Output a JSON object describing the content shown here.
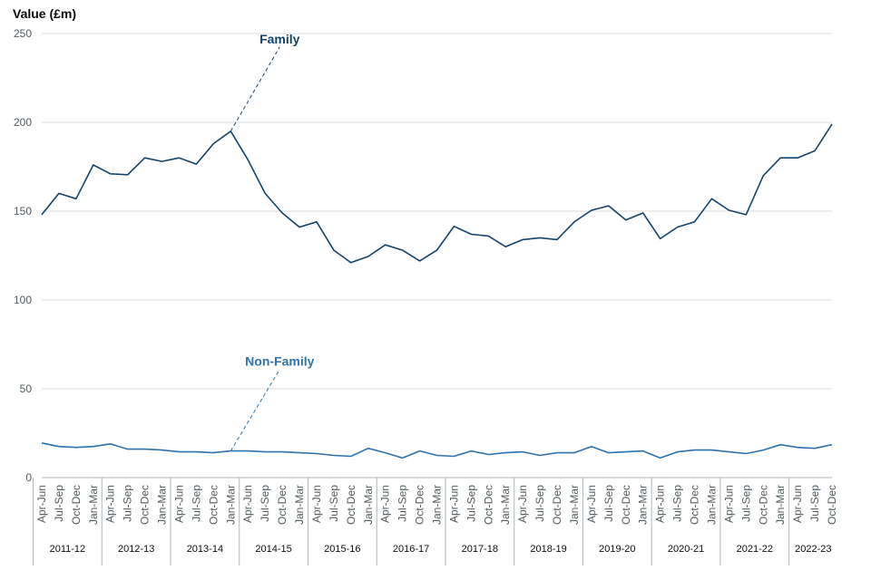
{
  "chart_data": {
    "type": "line",
    "ylabel": "Value (£m)",
    "ylim": [
      0,
      250
    ],
    "yticks": [
      0,
      50,
      100,
      150,
      200,
      250
    ],
    "grid": true,
    "legend": "inline labels",
    "categories": [
      "Apr-Jun",
      "Jul-Sep",
      "Oct-Dec",
      "Jan-Mar",
      "Apr-Jun",
      "Jul-Sep",
      "Oct-Dec",
      "Jan-Mar",
      "Apr-Jun",
      "Jul-Sep",
      "Oct-Dec",
      "Jan-Mar",
      "Apr-Jun",
      "Jul-Sep",
      "Oct-Dec",
      "Jan-Mar",
      "Apr-Jun",
      "Jul-Sep",
      "Oct-Dec",
      "Jan-Mar",
      "Apr-Jun",
      "Jul-Sep",
      "Oct-Dec",
      "Jan-Mar",
      "Apr-Jun",
      "Jul-Sep",
      "Oct-Dec",
      "Jan-Mar",
      "Apr-Jun",
      "Jul-Sep",
      "Oct-Dec",
      "Jan-Mar",
      "Apr-Jun",
      "Jul-Sep",
      "Oct-Dec",
      "Jan-Mar",
      "Apr-Jun",
      "Jul-Sep",
      "Oct-Dec",
      "Jan-Mar",
      "Apr-Jun",
      "Jul-Sep",
      "Oct-Dec",
      "Jan-Mar",
      "Apr-Jun",
      "Jul-Sep",
      "Oct-Dec"
    ],
    "financial_years": [
      {
        "label": "2011-12",
        "quarters": 4
      },
      {
        "label": "2012-13",
        "quarters": 4
      },
      {
        "label": "2013-14",
        "quarters": 4
      },
      {
        "label": "2014-15",
        "quarters": 4
      },
      {
        "label": "2015-16",
        "quarters": 4
      },
      {
        "label": "2016-17",
        "quarters": 4
      },
      {
        "label": "2017-18",
        "quarters": 4
      },
      {
        "label": "2018-19",
        "quarters": 4
      },
      {
        "label": "2019-20",
        "quarters": 4
      },
      {
        "label": "2020-21",
        "quarters": 4
      },
      {
        "label": "2021-22",
        "quarters": 4
      },
      {
        "label": "2022-23",
        "quarters": 3
      }
    ],
    "series": [
      {
        "name": "Family",
        "color": "#12436d",
        "values": [
          148,
          160,
          157,
          176,
          171,
          170.5,
          180,
          178,
          180,
          176.5,
          188,
          195,
          179,
          160,
          149,
          141,
          144,
          128,
          121,
          124.5,
          131,
          128,
          122,
          128,
          141.5,
          137,
          136,
          130,
          134,
          135,
          134,
          144,
          150.5,
          153,
          145,
          149,
          134.5,
          141,
          144,
          157,
          150.5,
          148,
          170,
          180,
          180,
          184,
          199
        ]
      },
      {
        "name": "Non-Family",
        "color": "#2e72ad",
        "values": [
          19.5,
          17.5,
          17,
          17.5,
          19,
          16,
          16,
          15.5,
          14.5,
          14.5,
          14,
          15,
          15,
          14.5,
          14.5,
          14,
          13.5,
          12.5,
          12,
          16.5,
          14,
          11,
          15,
          12.5,
          12,
          15,
          13,
          14,
          14.5,
          12.5,
          14,
          14,
          17.5,
          14,
          14.5,
          15,
          11,
          14.5,
          15.5,
          15.5,
          14.5,
          13.5,
          15.5,
          18.5,
          17,
          16.5,
          18.5
        ]
      }
    ],
    "annotations": [
      {
        "text": "Family",
        "series": "Family",
        "point_index": 11
      },
      {
        "text": "Non-Family",
        "series": "Non-Family",
        "point_index": 11
      }
    ]
  }
}
